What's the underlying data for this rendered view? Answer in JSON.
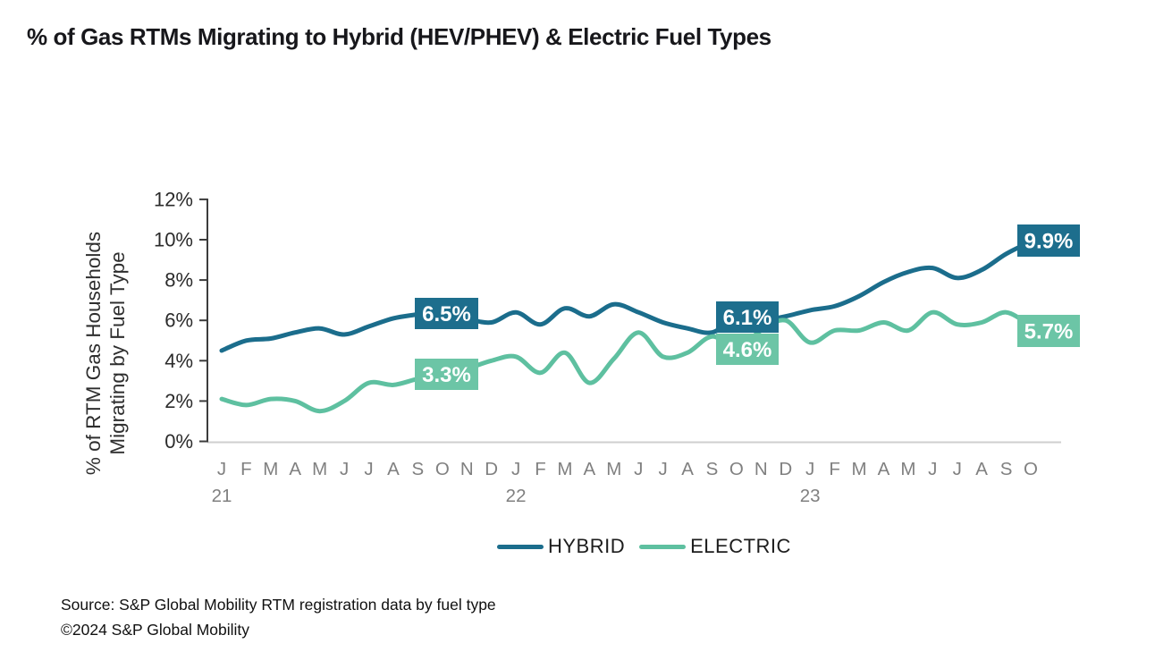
{
  "page": {
    "title": "% of Gas RTMs Migrating to Hybrid (HEV/PHEV) & Electric Fuel Types"
  },
  "legend": [
    {
      "label": "HYBRID",
      "color": "#1b6d8c"
    },
    {
      "label": "ELECTRIC",
      "color": "#5ec0a0"
    }
  ],
  "source": {
    "line1": "Source: S&P Global Mobility RTM registration data by fuel type",
    "line2": "©2024 S&P Global Mobility"
  },
  "chart_data": {
    "type": "line",
    "title": "% of Gas RTMs Migrating to Hybrid (HEV/PHEV) & Electric Fuel Types",
    "ylabel_line1": "% of RTM Gas Households",
    "ylabel_line2": "Migrating by Fuel Type",
    "ylim": [
      0,
      12
    ],
    "y_ticks": [
      "0%",
      "2%",
      "4%",
      "6%",
      "8%",
      "10%",
      "12%"
    ],
    "grid": false,
    "legend_position": "bottom",
    "x_month_labels": [
      "J",
      "F",
      "M",
      "A",
      "M",
      "J",
      "J",
      "A",
      "S",
      "O",
      "N",
      "D",
      "J",
      "F",
      "M",
      "A",
      "M",
      "J",
      "J",
      "A",
      "S",
      "O",
      "N",
      "D",
      "J",
      "F",
      "M",
      "A",
      "M",
      "J",
      "J",
      "A",
      "S",
      "O"
    ],
    "x_year_labels": [
      {
        "label": "21",
        "index": 0
      },
      {
        "label": "22",
        "index": 12
      },
      {
        "label": "23",
        "index": 24
      }
    ],
    "series": [
      {
        "name": "HYBRID",
        "color": "#1b6d8c",
        "callout_color": "#1d6e8d",
        "values": [
          4.5,
          5.0,
          5.1,
          5.4,
          5.6,
          5.3,
          5.7,
          6.1,
          6.3,
          6.5,
          6.1,
          5.9,
          6.4,
          5.8,
          6.6,
          6.2,
          6.8,
          6.4,
          5.9,
          5.6,
          5.4,
          6.1,
          6.0,
          6.2,
          6.5,
          6.7,
          7.2,
          7.9,
          8.4,
          8.6,
          8.1,
          8.5,
          9.3,
          9.9
        ]
      },
      {
        "name": "ELECTRIC",
        "color": "#5ec0a0",
        "callout_color": "#6cc5a6",
        "values": [
          2.1,
          1.8,
          2.1,
          2.0,
          1.5,
          2.0,
          2.9,
          2.8,
          3.1,
          3.3,
          3.6,
          4.0,
          4.2,
          3.4,
          4.4,
          2.9,
          4.1,
          5.4,
          4.2,
          4.4,
          5.2,
          4.6,
          5.5,
          6.0,
          4.9,
          5.5,
          5.5,
          5.9,
          5.5,
          6.4,
          5.8,
          5.9,
          6.4,
          5.7
        ]
      }
    ],
    "callouts": [
      {
        "id": "hybrid-oct-21",
        "series": "HYBRID",
        "month": "Oct 21",
        "text": "6.5%",
        "value": 6.5
      },
      {
        "id": "electric-oct-21",
        "series": "ELECTRIC",
        "month": "Oct 21",
        "text": "3.3%",
        "value": 3.3
      },
      {
        "id": "hybrid-oct-22",
        "series": "HYBRID",
        "month": "Oct 22",
        "text": "6.1%",
        "value": 6.1
      },
      {
        "id": "electric-oct-22",
        "series": "ELECTRIC",
        "month": "Oct 22",
        "text": "4.6%",
        "value": 4.6
      },
      {
        "id": "hybrid-oct-23",
        "series": "HYBRID",
        "month": "Oct 23",
        "text": "9.9%",
        "value": 9.9
      },
      {
        "id": "electric-oct-23",
        "series": "ELECTRIC",
        "month": "Oct 23",
        "text": "5.7%",
        "value": 5.7
      }
    ]
  }
}
